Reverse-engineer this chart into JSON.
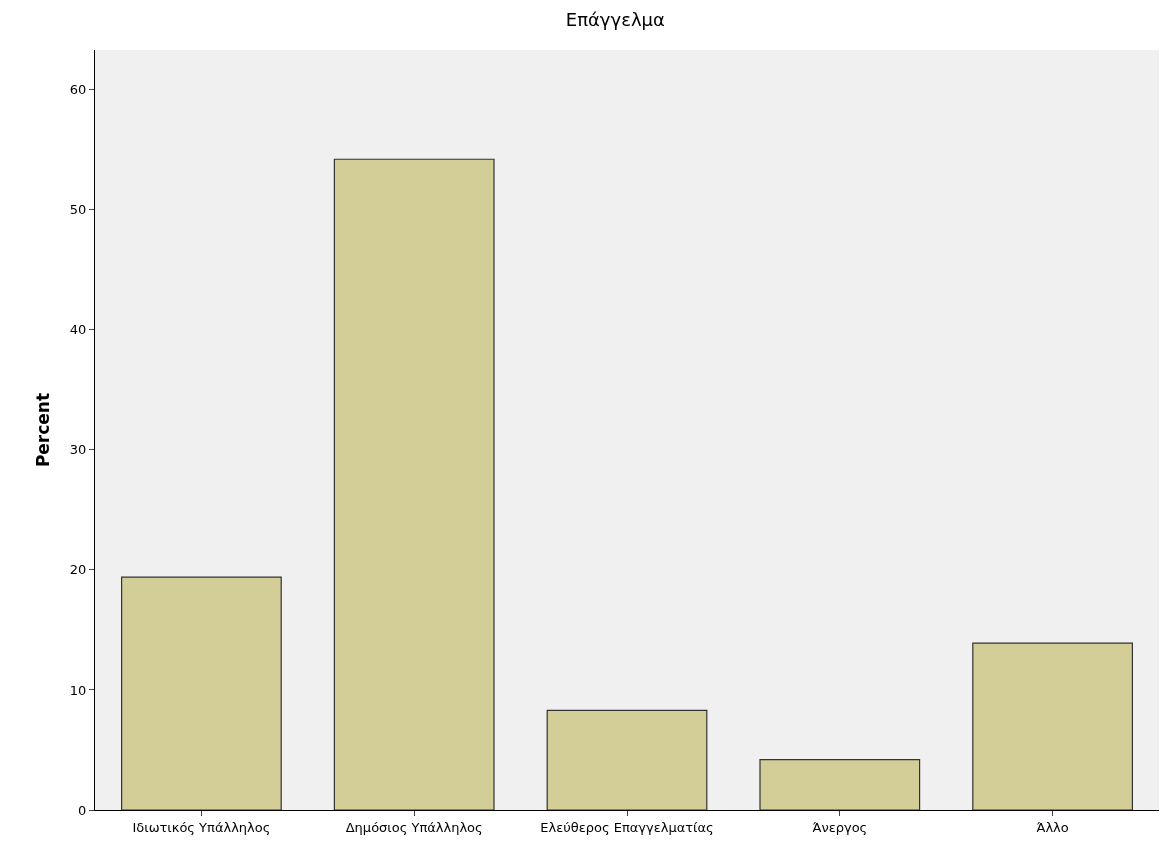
{
  "chart_data": {
    "type": "bar",
    "title": "Επάγγελμα",
    "ylabel": "Percent",
    "categories": [
      "Ιδιωτικός Υπάλληλος",
      "Δημόσιος Υπάλληλος",
      "Ελεύθερος Επαγγελματίας",
      "Άνεργος",
      "Άλλο"
    ],
    "values": [
      19.4,
      54.2,
      8.3,
      4.2,
      13.9
    ],
    "color": "#d3ce98",
    "ylim": [
      0,
      63.3
    ],
    "yticks": [
      0,
      10,
      20,
      30,
      40,
      50,
      60
    ],
    "grid": false
  }
}
